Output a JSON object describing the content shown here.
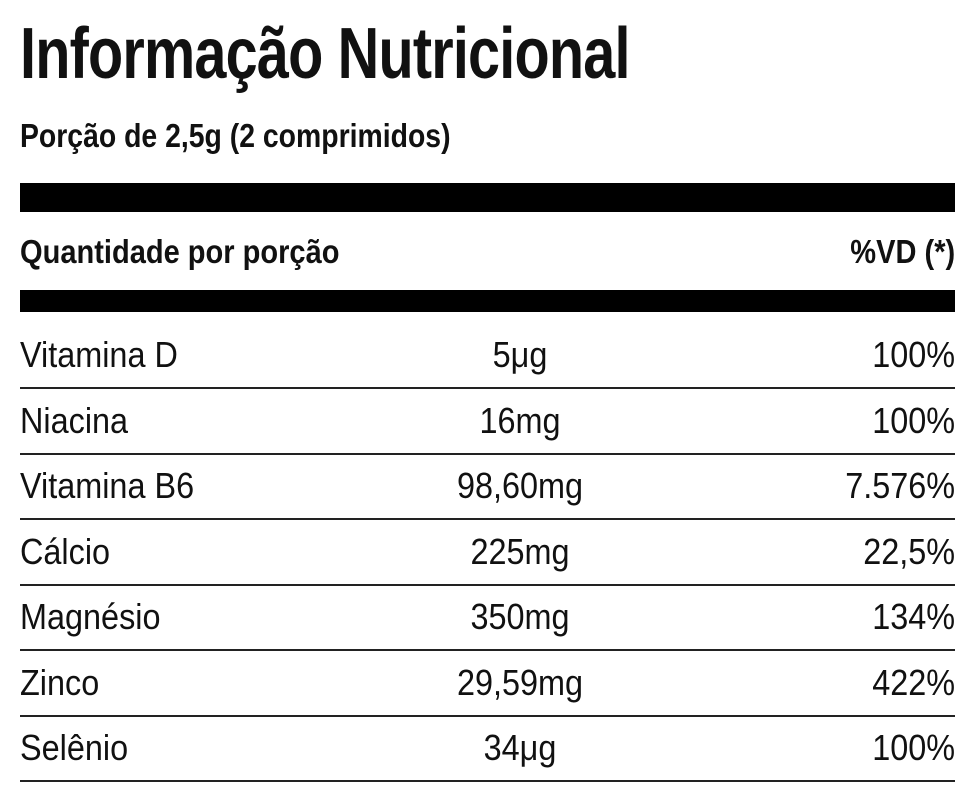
{
  "header": {
    "title": "Informação Nutricional",
    "subtitle": "Porção de 2,5g (2 comprimidos)"
  },
  "table": {
    "columns": [
      "Quantidade por porção",
      "%VD (*)"
    ],
    "rows": [
      [
        "Vitamina D",
        "5μg",
        "100%"
      ],
      [
        "Niacina",
        "16mg",
        "100%"
      ],
      [
        "Vitamina B6",
        "98,60mg",
        "7.576%"
      ],
      [
        "Cálcio",
        "225mg",
        "22,5%"
      ],
      [
        "Magnésio",
        "350mg",
        "134%"
      ],
      [
        "Zinco",
        "29,59mg",
        "422%"
      ],
      [
        "Selênio",
        "34μg",
        "100%"
      ]
    ]
  }
}
